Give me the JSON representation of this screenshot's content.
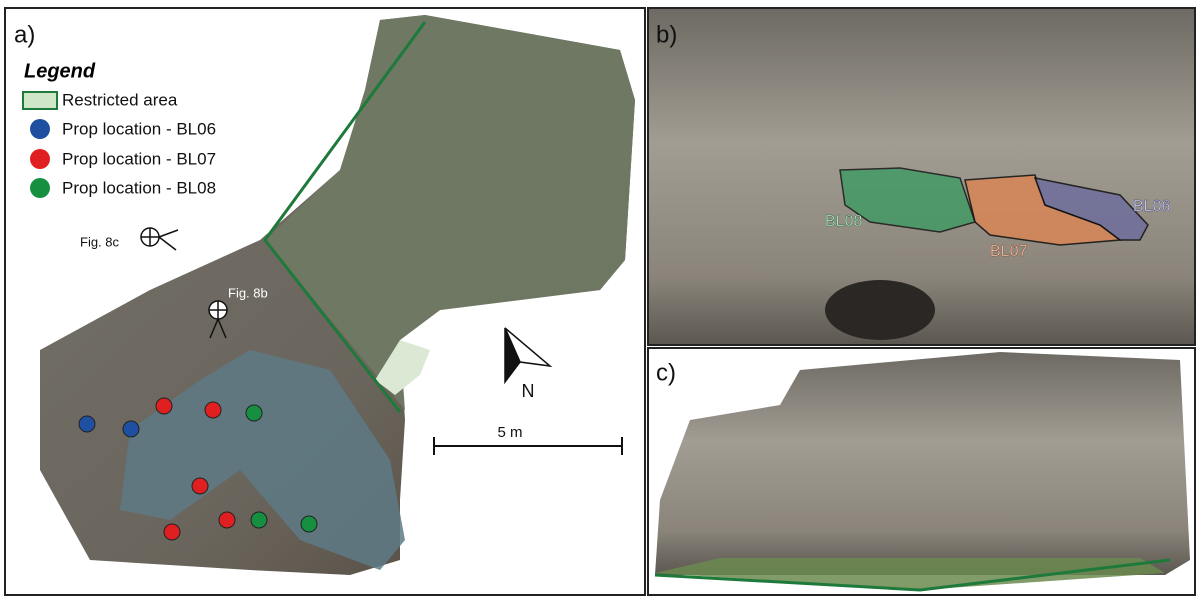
{
  "panels": {
    "a": {
      "label": "a)",
      "legend": {
        "title": "Legend",
        "items": [
          "Restricted area",
          "Prop location - BL06",
          "Prop location - BL07",
          "Prop location - BL08"
        ]
      },
      "annotations": [
        "Fig. 8c",
        "Fig. 8b"
      ],
      "north": "N",
      "scale_bar": "5 m"
    },
    "b": {
      "label": "b)",
      "areas": [
        "BL08",
        "BL07",
        "BL06"
      ]
    },
    "c": {
      "label": "c)"
    }
  }
}
